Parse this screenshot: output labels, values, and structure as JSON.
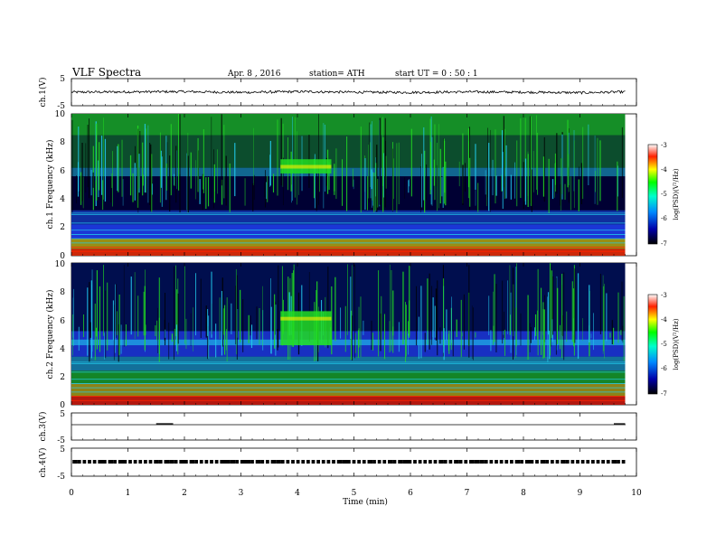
{
  "header": {
    "title": "VLF Spectra",
    "date": "Apr. 8 , 2016",
    "station": "station= ATH",
    "start": "start UT = 0 : 50 : 1"
  },
  "chart_data": [
    {
      "type": "line",
      "panel": "ch1-waveform",
      "ylabel": "ch.1(V)",
      "ylim": [
        -5,
        5
      ],
      "yticks": [
        "5",
        "-5"
      ],
      "x": [
        0,
        1,
        2,
        3,
        4,
        5,
        6,
        7,
        8,
        9,
        9.8
      ],
      "values": [
        0,
        0.1,
        0.2,
        -0.1,
        0.2,
        0,
        -0.1,
        0.1,
        0,
        -0.2,
        0.1
      ]
    },
    {
      "type": "heatmap",
      "panel": "ch1-spectrogram",
      "ylabel": "ch.1 Frequency (kHz)",
      "ylim": [
        0,
        10
      ],
      "yticks": [
        "0",
        "2",
        "4",
        "6",
        "8",
        "10"
      ],
      "colorbar": {
        "label": "log(PSD)(V²/Hz)",
        "range": [
          -7,
          -3
        ],
        "ticks": [
          "-3",
          "-4",
          "-5",
          "-6",
          "-7"
        ]
      }
    },
    {
      "type": "heatmap",
      "panel": "ch2-spectrogram",
      "ylabel": "ch.2 Frequency (kHz)",
      "ylim": [
        0,
        10
      ],
      "yticks": [
        "0",
        "2",
        "4",
        "6",
        "8",
        "10"
      ],
      "colorbar": {
        "label": "log(PSD)(V²/Hz)",
        "range": [
          -7,
          -3
        ],
        "ticks": [
          "-3",
          "-4",
          "-5",
          "-6",
          "-7"
        ]
      }
    },
    {
      "type": "line",
      "panel": "ch3-waveform",
      "ylabel": "ch.3(V)",
      "ylim": [
        -5,
        5
      ],
      "yticks": [
        "5",
        "-5"
      ],
      "x": [
        0,
        9.8
      ],
      "values": [
        0,
        0
      ]
    },
    {
      "type": "line",
      "panel": "ch4-waveform",
      "ylabel": "ch.4(V)",
      "ylim": [
        -5,
        5
      ],
      "yticks": [
        "5",
        "-5"
      ],
      "x": [
        0,
        9.8
      ],
      "values": [
        0,
        0
      ]
    }
  ],
  "xaxis": {
    "label": "Time (min)",
    "range": [
      0,
      10
    ],
    "ticks": [
      "0",
      "1",
      "2",
      "3",
      "4",
      "5",
      "6",
      "7",
      "8",
      "9",
      "10"
    ]
  },
  "colors": {
    "background": "#000033",
    "green": "#22dd22",
    "cyan": "#22ccee",
    "blue": "#2244ff",
    "yellow": "#ffee00",
    "red": "#ff2200"
  }
}
